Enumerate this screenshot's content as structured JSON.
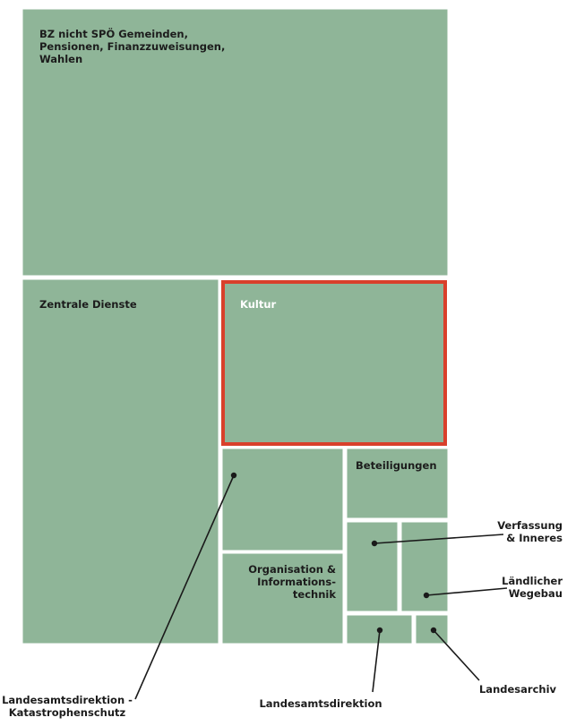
{
  "chart_data": {
    "type": "treemap",
    "highlight_color": "#d9402b",
    "tile_color": "#8fb598",
    "items": [
      {
        "label": "BZ nicht SPÖ Gemeinden, Pensionen, Finanzzuweisungen, Wahlen",
        "value": 1000
      },
      {
        "label": "Zentrale Dienste",
        "value": 426
      },
      {
        "label": "Kultur",
        "value": 315,
        "highlight": true
      },
      {
        "label": "Landesamtsdirektion - Katastrophenschutz",
        "value": 82
      },
      {
        "label": "Organisation & Informations-technik",
        "value": 65
      },
      {
        "label": "Beteiligungen",
        "value": 61
      },
      {
        "label": "Verfassung & Inneres",
        "value": 37
      },
      {
        "label": "Ländlicher Wegebau",
        "value": 36
      },
      {
        "label": "Landesamtsdirektion",
        "value": 17
      },
      {
        "label": "Landesarchiv",
        "value": 8
      }
    ]
  }
}
